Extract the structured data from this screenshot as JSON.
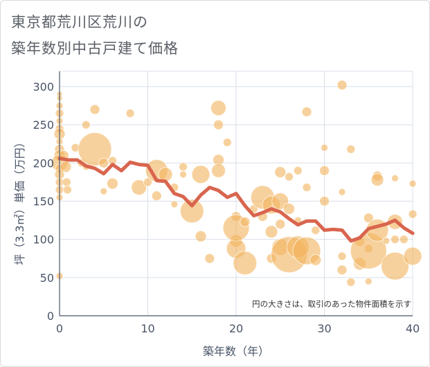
{
  "title_lines": [
    "東京都荒川区荒川の",
    "築年数別中古戸建て価格"
  ],
  "chart_data": {
    "type": "scatter",
    "title": "東京都荒川区荒川の築年数別中古戸建て価格",
    "xlabel": "築年数（年）",
    "ylabel": "坪（3.3㎡）単価（万円）",
    "xlim": [
      0,
      40
    ],
    "ylim": [
      0,
      320
    ],
    "xticks": [
      0,
      10,
      20,
      30,
      40
    ],
    "yticks": [
      0,
      50,
      100,
      150,
      200,
      250,
      300
    ],
    "grid": true,
    "note": "円の大きさは、取引のあった物件面積を示す",
    "colors": {
      "bubble": "#f2b25c",
      "line": "#d9654e",
      "grid": "#d8dfe8",
      "axis": "#4a5568"
    },
    "bubbles": [
      {
        "x": 0,
        "y": 290,
        "size": 4
      },
      {
        "x": 0,
        "y": 285,
        "size": 4
      },
      {
        "x": 0,
        "y": 275,
        "size": 5
      },
      {
        "x": 0,
        "y": 265,
        "size": 6
      },
      {
        "x": 0,
        "y": 255,
        "size": 5
      },
      {
        "x": 0,
        "y": 245,
        "size": 6
      },
      {
        "x": 0,
        "y": 238,
        "size": 8
      },
      {
        "x": 0,
        "y": 228,
        "size": 5
      },
      {
        "x": 0,
        "y": 218,
        "size": 7
      },
      {
        "x": 0,
        "y": 210,
        "size": 8
      },
      {
        "x": 0,
        "y": 200,
        "size": 12
      },
      {
        "x": 0,
        "y": 193,
        "size": 6
      },
      {
        "x": 0,
        "y": 185,
        "size": 7
      },
      {
        "x": 0,
        "y": 175,
        "size": 6
      },
      {
        "x": 0,
        "y": 165,
        "size": 6
      },
      {
        "x": 0,
        "y": 155,
        "size": 5
      },
      {
        "x": 0,
        "y": 52,
        "size": 5
      },
      {
        "x": 0.5,
        "y": 210,
        "size": 7
      },
      {
        "x": 0.7,
        "y": 195,
        "size": 8
      },
      {
        "x": 0.8,
        "y": 175,
        "size": 6
      },
      {
        "x": 0.9,
        "y": 165,
        "size": 6
      },
      {
        "x": 1.8,
        "y": 220,
        "size": 6
      },
      {
        "x": 2.5,
        "y": 200,
        "size": 6
      },
      {
        "x": 3,
        "y": 250,
        "size": 6
      },
      {
        "x": 3,
        "y": 195,
        "size": 5
      },
      {
        "x": 4,
        "y": 270,
        "size": 7
      },
      {
        "x": 4,
        "y": 218,
        "size": 24
      },
      {
        "x": 5,
        "y": 163,
        "size": 5
      },
      {
        "x": 5,
        "y": 200,
        "size": 7
      },
      {
        "x": 6,
        "y": 173,
        "size": 8
      },
      {
        "x": 6,
        "y": 203,
        "size": 6
      },
      {
        "x": 8,
        "y": 265,
        "size": 6
      },
      {
        "x": 9,
        "y": 168,
        "size": 11
      },
      {
        "x": 10,
        "y": 175,
        "size": 6
      },
      {
        "x": 11,
        "y": 190,
        "size": 16
      },
      {
        "x": 11,
        "y": 157,
        "size": 7
      },
      {
        "x": 12,
        "y": 185,
        "size": 10
      },
      {
        "x": 13,
        "y": 168,
        "size": 6
      },
      {
        "x": 13,
        "y": 146,
        "size": 5
      },
      {
        "x": 14,
        "y": 195,
        "size": 6
      },
      {
        "x": 14,
        "y": 185,
        "size": 5
      },
      {
        "x": 15,
        "y": 137,
        "size": 17
      },
      {
        "x": 16,
        "y": 185,
        "size": 13
      },
      {
        "x": 16,
        "y": 104,
        "size": 8
      },
      {
        "x": 17,
        "y": 75,
        "size": 7
      },
      {
        "x": 18,
        "y": 272,
        "size": 11
      },
      {
        "x": 18,
        "y": 250,
        "size": 7
      },
      {
        "x": 18,
        "y": 204,
        "size": 8
      },
      {
        "x": 18,
        "y": 190,
        "size": 10
      },
      {
        "x": 19,
        "y": 227,
        "size": 6
      },
      {
        "x": 20,
        "y": 130,
        "size": 7
      },
      {
        "x": 20,
        "y": 98,
        "size": 9
      },
      {
        "x": 20,
        "y": 88,
        "size": 14
      },
      {
        "x": 20,
        "y": 115,
        "size": 19
      },
      {
        "x": 21,
        "y": 123,
        "size": 7
      },
      {
        "x": 21,
        "y": 69,
        "size": 17
      },
      {
        "x": 22,
        "y": 140,
        "size": 6
      },
      {
        "x": 23,
        "y": 130,
        "size": 7
      },
      {
        "x": 23,
        "y": 155,
        "size": 17
      },
      {
        "x": 24,
        "y": 145,
        "size": 13
      },
      {
        "x": 24,
        "y": 110,
        "size": 9
      },
      {
        "x": 24,
        "y": 75,
        "size": 7
      },
      {
        "x": 25,
        "y": 150,
        "size": 12
      },
      {
        "x": 25,
        "y": 188,
        "size": 8
      },
      {
        "x": 25,
        "y": 120,
        "size": 7
      },
      {
        "x": 25,
        "y": 90,
        "size": 12
      },
      {
        "x": 26,
        "y": 140,
        "size": 8
      },
      {
        "x": 26,
        "y": 182,
        "size": 6
      },
      {
        "x": 26,
        "y": 80,
        "size": 26
      },
      {
        "x": 27,
        "y": 90,
        "size": 16
      },
      {
        "x": 27,
        "y": 190,
        "size": 6
      },
      {
        "x": 27,
        "y": 125,
        "size": 5
      },
      {
        "x": 28,
        "y": 267,
        "size": 7
      },
      {
        "x": 28,
        "y": 168,
        "size": 6
      },
      {
        "x": 28,
        "y": 85,
        "size": 20
      },
      {
        "x": 29,
        "y": 73,
        "size": 8
      },
      {
        "x": 29,
        "y": 112,
        "size": 6
      },
      {
        "x": 30,
        "y": 220,
        "size": 5
      },
      {
        "x": 30,
        "y": 190,
        "size": 7
      },
      {
        "x": 30,
        "y": 150,
        "size": 7
      },
      {
        "x": 32,
        "y": 302,
        "size": 7
      },
      {
        "x": 32,
        "y": 162,
        "size": 5
      },
      {
        "x": 32,
        "y": 78,
        "size": 6
      },
      {
        "x": 32,
        "y": 60,
        "size": 7
      },
      {
        "x": 33,
        "y": 218,
        "size": 6
      },
      {
        "x": 33,
        "y": 44,
        "size": 6
      },
      {
        "x": 34,
        "y": 97,
        "size": 7
      },
      {
        "x": 34,
        "y": 68,
        "size": 9
      },
      {
        "x": 35,
        "y": 88,
        "size": 6
      },
      {
        "x": 35,
        "y": 128,
        "size": 7
      },
      {
        "x": 35,
        "y": 45,
        "size": 5
      },
      {
        "x": 35,
        "y": 85,
        "size": 26
      },
      {
        "x": 36,
        "y": 112,
        "size": 16
      },
      {
        "x": 36,
        "y": 183,
        "size": 7
      },
      {
        "x": 36,
        "y": 178,
        "size": 9
      },
      {
        "x": 37,
        "y": 98,
        "size": 5
      },
      {
        "x": 38,
        "y": 180,
        "size": 5
      },
      {
        "x": 38,
        "y": 123,
        "size": 11
      },
      {
        "x": 38,
        "y": 100,
        "size": 6
      },
      {
        "x": 38,
        "y": 65,
        "size": 20
      },
      {
        "x": 39,
        "y": 100,
        "size": 6
      },
      {
        "x": 40,
        "y": 173,
        "size": 5
      },
      {
        "x": 40,
        "y": 133,
        "size": 6
      },
      {
        "x": 40,
        "y": 78,
        "size": 13
      }
    ],
    "trend": {
      "x": [
        0,
        1,
        2,
        3,
        4,
        5,
        6,
        7,
        8,
        9,
        10,
        11,
        12,
        13,
        14,
        15,
        16,
        17,
        18,
        19,
        20,
        21,
        22,
        23,
        24,
        25,
        26,
        27,
        28,
        29,
        30,
        31,
        32,
        33,
        34,
        35,
        36,
        37,
        38,
        39,
        40
      ],
      "y": [
        206,
        204,
        204,
        196,
        193,
        186,
        198,
        190,
        201,
        198,
        197,
        177,
        176,
        160,
        156,
        144,
        158,
        168,
        164,
        155,
        160,
        144,
        131,
        135,
        140,
        136,
        127,
        119,
        124,
        124,
        112,
        113,
        112,
        98,
        102,
        114,
        117,
        120,
        125,
        115,
        108
      ]
    }
  }
}
